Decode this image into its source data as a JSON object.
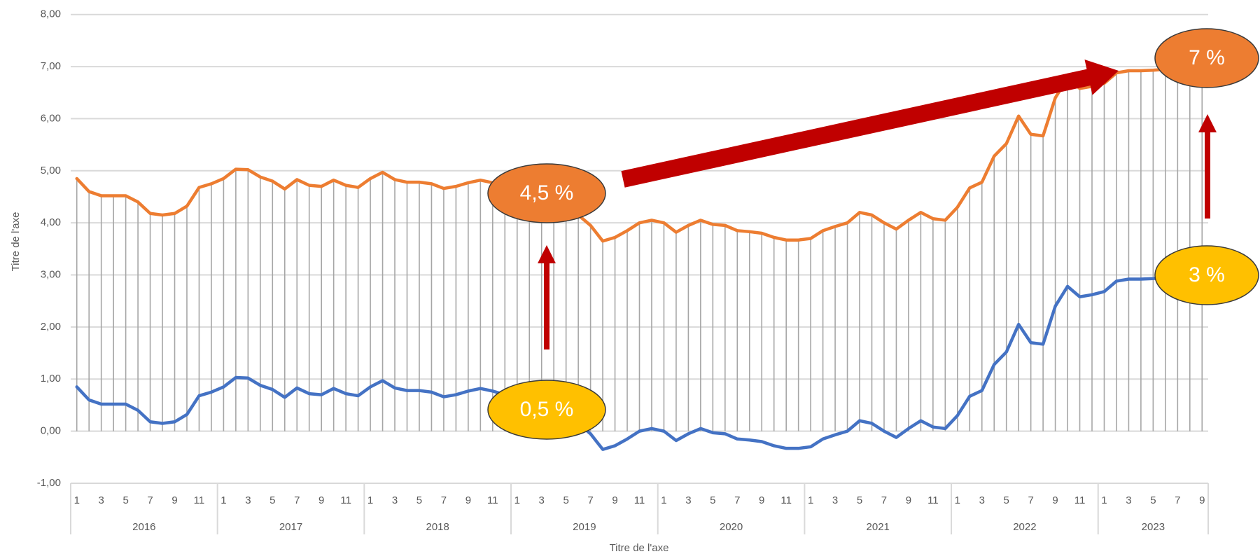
{
  "chart_data": {
    "type": "line",
    "x_axis_title": "Titre de l'axe",
    "y_axis_title": "Titre de l'axe",
    "categories": [
      "1",
      null,
      "3",
      null,
      "5",
      null,
      "7",
      null,
      "9",
      null,
      "11",
      null,
      "1",
      null,
      "3",
      null,
      "5",
      null,
      "7",
      null,
      "9",
      null,
      "11",
      null,
      "1",
      null,
      "3",
      null,
      "5",
      null,
      "7",
      null,
      "9",
      null,
      "11",
      null,
      "1",
      null,
      "3",
      null,
      "5",
      null,
      "7",
      null,
      "9",
      null,
      "11",
      null,
      "1",
      null,
      "3",
      null,
      "5",
      null,
      "7",
      null,
      "9",
      null,
      "11",
      null,
      "1",
      null,
      "3",
      null,
      "5",
      null,
      "7",
      null,
      "9",
      null,
      "11",
      null,
      "1",
      null,
      "3",
      null,
      "5",
      null,
      "7",
      null,
      "9",
      null,
      "11",
      null,
      "1",
      null,
      "3",
      null,
      "5",
      null,
      "7",
      null,
      "9"
    ],
    "years": [
      "2016",
      "2017",
      "2018",
      "2019",
      "2020",
      "2021",
      "2022",
      "2023"
    ],
    "series": [
      {
        "color": "#ed7d31",
        "values": [
          4.85,
          4.6,
          4.52,
          4.52,
          4.52,
          4.4,
          4.18,
          4.15,
          4.18,
          4.32,
          4.68,
          4.75,
          4.85,
          5.03,
          5.02,
          4.88,
          4.8,
          4.65,
          4.83,
          4.72,
          4.7,
          4.82,
          4.72,
          4.68,
          4.85,
          4.97,
          4.83,
          4.78,
          4.78,
          4.75,
          4.66,
          4.7,
          4.77,
          4.82,
          4.77,
          4.7,
          4.6,
          4.45,
          4.35,
          4.3,
          4.25,
          4.15,
          3.95,
          3.65,
          3.72,
          3.85,
          4.0,
          4.05,
          4.0,
          3.82,
          3.95,
          4.05,
          3.97,
          3.95,
          3.85,
          3.83,
          3.8,
          3.72,
          3.67,
          3.67,
          3.7,
          3.85,
          3.93,
          4.0,
          4.2,
          4.15,
          4.0,
          3.88,
          4.05,
          4.2,
          4.08,
          4.05,
          4.3,
          4.67,
          4.78,
          5.28,
          5.52,
          6.05,
          5.7,
          5.67,
          6.4,
          6.78,
          6.58,
          6.62,
          6.68,
          6.88,
          6.92,
          6.92,
          6.93,
          6.95,
          6.9,
          6.85,
          6.9
        ]
      },
      {
        "color": "#4472c4",
        "values": [
          0.85,
          0.6,
          0.52,
          0.52,
          0.52,
          0.4,
          0.18,
          0.15,
          0.18,
          0.32,
          0.68,
          0.75,
          0.85,
          1.03,
          1.02,
          0.88,
          0.8,
          0.65,
          0.83,
          0.72,
          0.7,
          0.82,
          0.72,
          0.68,
          0.85,
          0.97,
          0.83,
          0.78,
          0.78,
          0.75,
          0.66,
          0.7,
          0.77,
          0.82,
          0.77,
          0.7,
          0.6,
          0.45,
          0.35,
          0.3,
          0.25,
          0.15,
          -0.05,
          -0.35,
          -0.28,
          -0.15,
          0,
          0.05,
          0,
          -0.18,
          -0.05,
          0.05,
          -0.03,
          -0.05,
          -0.15,
          -0.17,
          -0.2,
          -0.28,
          -0.33,
          -0.33,
          -0.3,
          -0.15,
          -0.07,
          0,
          0.2,
          0.15,
          0,
          -0.12,
          0.05,
          0.2,
          0.08,
          0.05,
          0.3,
          0.67,
          0.78,
          1.28,
          1.52,
          2.05,
          1.7,
          1.67,
          2.4,
          2.78,
          2.58,
          2.62,
          2.68,
          2.88,
          2.92,
          2.92,
          2.93,
          2.95,
          2.9,
          2.85,
          2.9
        ]
      }
    ],
    "drop_lines": true,
    "drop_line_color": "#a6a6a6",
    "ylim": [
      -1,
      8
    ],
    "yticks": [
      {
        "value": -1,
        "label": "-1,00"
      },
      {
        "value": 0,
        "label": "0,00"
      },
      {
        "value": 1,
        "label": "1,00"
      },
      {
        "value": 2,
        "label": "2,00"
      },
      {
        "value": 3,
        "label": "3,00"
      },
      {
        "value": 4,
        "label": "4,00"
      },
      {
        "value": 5,
        "label": "5,00"
      },
      {
        "value": 6,
        "label": "6,00"
      },
      {
        "value": 7,
        "label": "7,00"
      },
      {
        "value": 8,
        "label": "8,00"
      }
    ],
    "grid": true,
    "annotations": [
      {
        "text": "4,5 %",
        "color": "#ed7d31"
      },
      {
        "text": "0,5 %",
        "color": "#ffc000"
      },
      {
        "text": "7 %",
        "color": "#ed7d31"
      },
      {
        "text": "3 %",
        "color": "#ffc000"
      }
    ]
  }
}
